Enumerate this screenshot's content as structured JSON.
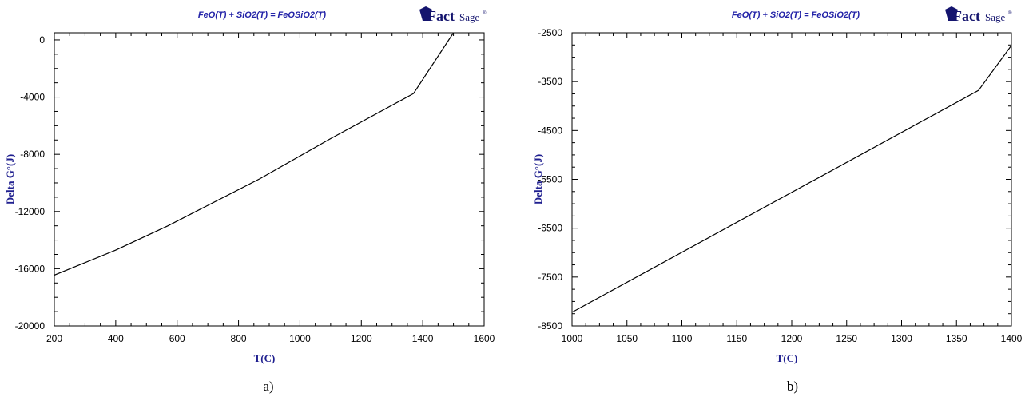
{
  "chart_data": [
    {
      "type": "line",
      "title": "FeO(T) +  SiO2(T) =  FeOSiO2(T)",
      "logo": "FactSage",
      "xlabel": "T(C)",
      "ylabel": "Delta G°(J)",
      "caption": "a)",
      "xlim": [
        200,
        1600
      ],
      "ylim": [
        -20000,
        500
      ],
      "xticks": [
        200,
        400,
        600,
        800,
        1000,
        1200,
        1400,
        1600
      ],
      "yticks": [
        0,
        -4000,
        -8000,
        -12000,
        -16000,
        -20000
      ],
      "xtick_labels": [
        "200",
        "400",
        "600",
        "800",
        "1000",
        "1200",
        "1400",
        "1600"
      ],
      "ytick_labels": [
        "0",
        "-4000",
        "-8000",
        "-12000",
        "-16000",
        "-20000"
      ],
      "grid": false,
      "series": [
        {
          "x": [
            200,
            400,
            570,
            870,
            1100,
            1370,
            1500
          ],
          "y": [
            -16450,
            -14700,
            -13000,
            -9700,
            -6900,
            -3750,
            500
          ]
        }
      ]
    },
    {
      "type": "line",
      "title": "FeO(T) +  SiO2(T) =  FeOSiO2(T)",
      "logo": "FactSage",
      "xlabel": "T(C)",
      "ylabel": "Delta G°(J)",
      "caption": "b)",
      "xlim": [
        1000,
        1400
      ],
      "ylim": [
        -8500,
        -2500
      ],
      "xticks": [
        1000,
        1050,
        1100,
        1150,
        1200,
        1250,
        1300,
        1350,
        1400
      ],
      "yticks": [
        -2500,
        -3500,
        -4500,
        -5500,
        -6500,
        -7500,
        -8500
      ],
      "xtick_labels": [
        "1000",
        "1050",
        "1100",
        "1150",
        "1200",
        "1250",
        "1300",
        "1350",
        "1400"
      ],
      "ytick_labels": [
        "-2500",
        "-3500",
        "-4500",
        "-5500",
        "-6500",
        "-7500",
        "-8500"
      ],
      "grid": false,
      "series": [
        {
          "x": [
            1000,
            1370,
            1400
          ],
          "y": [
            -8220,
            -3680,
            -2760
          ]
        }
      ]
    }
  ]
}
